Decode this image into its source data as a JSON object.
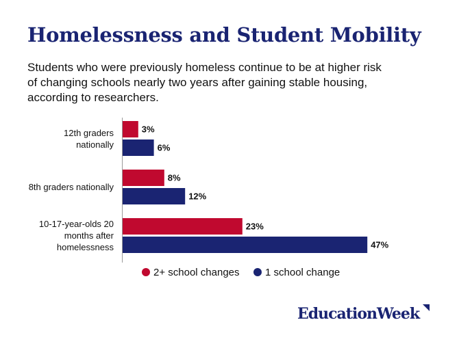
{
  "chart_data": {
    "type": "hbar",
    "title": "Homelessness and Student Mobility",
    "subtitle": "Students who were previously homeless continue to be at higher risk of changing schools nearly two years after gaining stable housing, according to researchers.",
    "categories": [
      "12th graders nationally",
      "8th graders nationally",
      "10-17-year-olds 20 months after homelessness"
    ],
    "series": [
      {
        "name": "2+ school changes",
        "color": "#c0092f",
        "values": [
          3,
          8,
          23
        ],
        "value_labels": [
          "3%",
          "8%",
          "23%"
        ]
      },
      {
        "name": "1 school change",
        "color": "#1a2472",
        "values": [
          6,
          12,
          47
        ],
        "value_labels": [
          "6%",
          "12%",
          "47%"
        ]
      }
    ],
    "legend": "bottom"
  },
  "logo": "EducationWeek"
}
